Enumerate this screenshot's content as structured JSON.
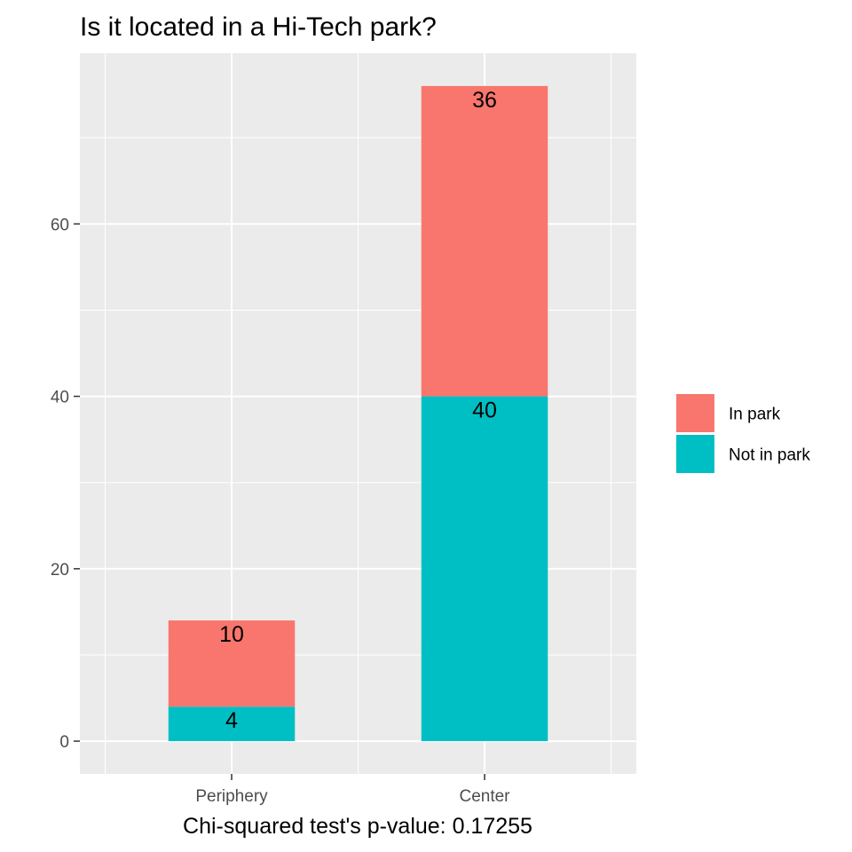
{
  "chart_data": {
    "type": "bar",
    "stacked": true,
    "title": "Is it located in a Hi-Tech park?",
    "xlabel": "Chi-squared test's p-value: 0.17255",
    "ylabel": "",
    "categories": [
      "Periphery",
      "Center"
    ],
    "series": [
      {
        "name": "Not in park",
        "values": [
          4,
          40
        ],
        "color": "#00BFC4"
      },
      {
        "name": "In park",
        "values": [
          10,
          36
        ],
        "color": "#F8766D"
      }
    ],
    "ylim": [
      -3.8,
      79.8
    ],
    "yticks": [
      0,
      20,
      40,
      60
    ],
    "yticks_labels": [
      "0",
      "20",
      "40",
      "60"
    ],
    "grid": true,
    "legend": {
      "position": "right",
      "entries": [
        "In park",
        "Not in park"
      ]
    }
  }
}
